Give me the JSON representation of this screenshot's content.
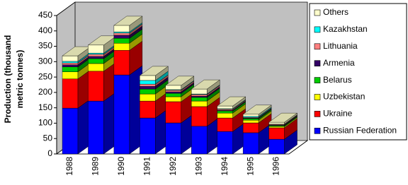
{
  "chart_data": {
    "type": "bar3d_stacked",
    "y_label": [
      "Production (thousand",
      "metric tonnes)"
    ],
    "categories": [
      "1988",
      "1989",
      "1990",
      "1991",
      "1992",
      "1993",
      "1994",
      "1995",
      "1996"
    ],
    "series": [
      {
        "name": "Russian Federation",
        "color": "#0000ff",
        "values": [
          149,
          172,
          257,
          117,
          101,
          90,
          73,
          69,
          48
        ]
      },
      {
        "name": "Ukraine",
        "color": "#ff0000",
        "values": [
          95,
          97,
          80,
          55,
          69,
          64,
          44,
          32,
          37
        ]
      },
      {
        "name": "Uzbekistan",
        "color": "#ffff00",
        "values": [
          23,
          25,
          23,
          23,
          16,
          18,
          16,
          9,
          4
        ]
      },
      {
        "name": "Belarus",
        "color": "#00cc00",
        "values": [
          16,
          16,
          16,
          16,
          11,
          12,
          7,
          5,
          3
        ]
      },
      {
        "name": "Armenia",
        "color": "#330066",
        "values": [
          7,
          7,
          10,
          9,
          5,
          4,
          2,
          2,
          2
        ]
      },
      {
        "name": "Lithuania",
        "color": "#ff8080",
        "values": [
          6,
          7,
          7,
          7,
          5,
          5,
          3,
          2,
          2
        ]
      },
      {
        "name": "Kazakhstan",
        "color": "#00ffff",
        "values": [
          5,
          4,
          4,
          12,
          2,
          2,
          2,
          3,
          1
        ]
      },
      {
        "name": "Others",
        "color": "#ffffcc",
        "values": [
          18,
          26,
          21,
          16,
          14,
          16,
          9,
          7,
          6
        ]
      }
    ],
    "ylim": [
      0,
      450
    ],
    "yticks": [
      0,
      50,
      100,
      150,
      200,
      250,
      300,
      350,
      400,
      450
    ],
    "grid": false
  }
}
